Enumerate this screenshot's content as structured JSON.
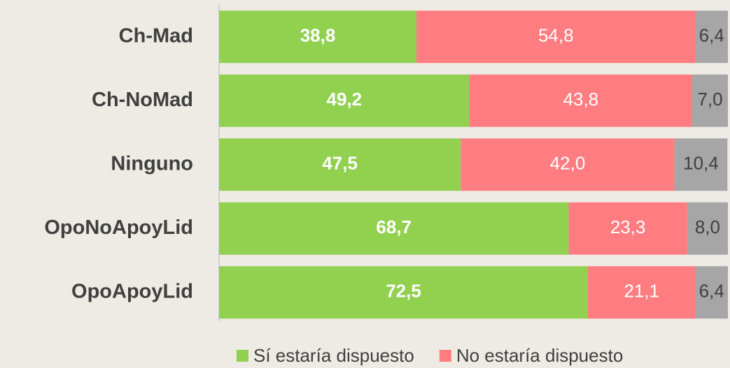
{
  "chart_data": {
    "type": "stacked-bar-horizontal",
    "categories": [
      "Ch-Mad",
      "Ch-NoMad",
      "Ninguno",
      "OpoNoApoyLid",
      "OpoApoyLid"
    ],
    "xlim": [
      0,
      100
    ],
    "series": [
      {
        "name": "Sí estaría dispuesto",
        "color": "#92d050",
        "values": [
          38.8,
          49.2,
          47.5,
          68.7,
          72.5
        ],
        "value_labels": [
          "38,8",
          "49,2",
          "47,5",
          "68,7",
          "72,5"
        ]
      },
      {
        "name": "No estaría dispuesto",
        "color": "#ff7c80",
        "values": [
          54.8,
          43.8,
          42.0,
          23.3,
          21.1
        ],
        "value_labels": [
          "54,8",
          "43,8",
          "42,0",
          "23,3",
          "21,1"
        ]
      },
      {
        "color": "#a6a6a6",
        "values": [
          6.4,
          7.0,
          10.4,
          8.0,
          6.4
        ],
        "value_labels": [
          "6,4",
          "7,0",
          "10,4",
          "8,0",
          "6,4"
        ]
      }
    ]
  }
}
